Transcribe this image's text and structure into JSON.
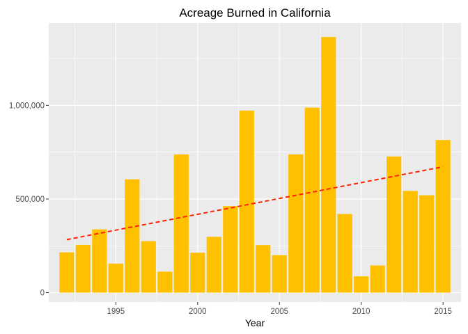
{
  "chart_data": {
    "type": "bar",
    "title": "Acreage Burned in California",
    "xlabel": "Year",
    "ylabel": "",
    "x": [
      1992,
      1993,
      1994,
      1995,
      1996,
      1997,
      1998,
      1999,
      2000,
      2001,
      2002,
      2003,
      2004,
      2005,
      2006,
      2007,
      2008,
      2009,
      2010,
      2011,
      2012,
      2013,
      2014,
      2015
    ],
    "values": [
      215000,
      255000,
      338000,
      155000,
      605000,
      275000,
      112000,
      738000,
      213000,
      298000,
      462000,
      972000,
      254000,
      200000,
      738000,
      988000,
      1365000,
      420000,
      87000,
      145000,
      727000,
      543000,
      520000,
      815000
    ],
    "trend": {
      "type": "linear",
      "style": "dashed",
      "from": [
        1992,
        283000
      ],
      "to": [
        2015,
        672000
      ]
    },
    "xlim": [
      1990.9,
      2016.1
    ],
    "ylim": [
      -50000,
      1440000
    ],
    "x_ticks": [
      1995,
      2000,
      2005,
      2010,
      2015
    ],
    "y_ticks": [
      0,
      500000,
      1000000
    ],
    "y_tick_labels": [
      "0",
      "500,000",
      "1,000,000"
    ],
    "grid": true,
    "legend": "none",
    "colors": {
      "bar": "#FFC000",
      "trend": "#FF2200",
      "panel": "#EBEBEB",
      "grid": "#FFFFFF"
    }
  }
}
